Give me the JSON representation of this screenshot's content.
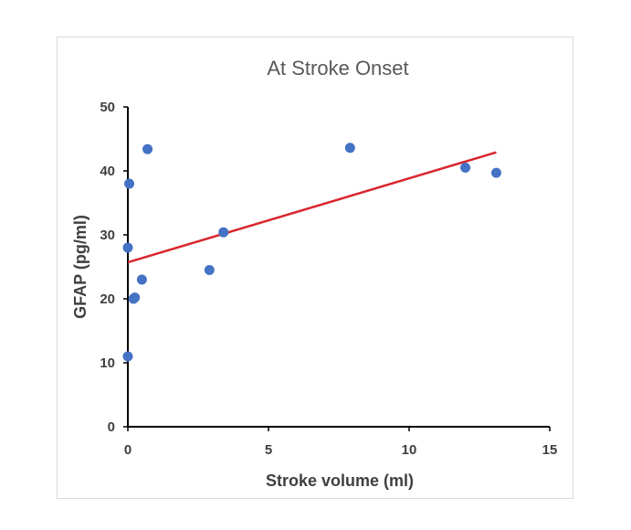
{
  "chart_data": {
    "type": "scatter",
    "title": "At Stroke Onset",
    "xlabel": "Stroke volume (ml)",
    "ylabel": "GFAP (pg/ml)",
    "xlim": [
      0,
      15
    ],
    "ylim": [
      0,
      50
    ],
    "xticks": [
      "0",
      "5",
      "10",
      "15"
    ],
    "yticks": [
      "0",
      "10",
      "20",
      "30",
      "40",
      "50"
    ],
    "grid": false,
    "legend": "none",
    "series": [
      {
        "points": [
          {
            "x": 0.0,
            "y": 11.0
          },
          {
            "x": 0.0,
            "y": 28.0
          },
          {
            "x": 0.05,
            "y": 38.0
          },
          {
            "x": 0.2,
            "y": 20.0
          },
          {
            "x": 0.25,
            "y": 20.2
          },
          {
            "x": 0.5,
            "y": 23.0
          },
          {
            "x": 0.7,
            "y": 43.4
          },
          {
            "x": 2.9,
            "y": 24.5
          },
          {
            "x": 3.4,
            "y": 30.4
          },
          {
            "x": 7.9,
            "y": 43.6
          },
          {
            "x": 12.0,
            "y": 40.5
          },
          {
            "x": 13.1,
            "y": 39.7
          }
        ]
      }
    ],
    "trendline": {
      "type": "linear",
      "x": [
        0,
        13.1
      ],
      "y": [
        25.7,
        42.9
      ]
    },
    "colors": {
      "points": "#4472c4",
      "trendline": "#d9262e",
      "axis": "#000000"
    }
  }
}
